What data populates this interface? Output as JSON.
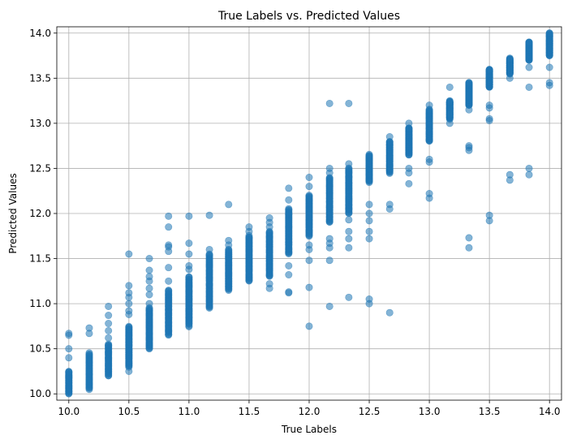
{
  "chart_data": {
    "type": "scatter",
    "title": "True Labels vs. Predicted Values",
    "xlabel": "True Labels",
    "ylabel": "Predicted Values",
    "xlim": [
      9.9,
      14.1
    ],
    "ylim": [
      9.93,
      14.07
    ],
    "xticks": [
      "10.0",
      "10.5",
      "11.0",
      "11.5",
      "12.0",
      "12.5",
      "13.0",
      "13.5",
      "14.0"
    ],
    "yticks": [
      "10.0",
      "10.5",
      "11.0",
      "11.5",
      "12.0",
      "12.5",
      "13.0",
      "13.5",
      "14.0"
    ],
    "grid": true,
    "marker_color": "#1f77b4",
    "marker_alpha": 0.55,
    "clusters": [
      {
        "x": 10.0,
        "y_range": [
          10.0,
          10.25
        ],
        "count": 40,
        "outliers": [
          10.4,
          10.5,
          10.65,
          10.67
        ]
      },
      {
        "x": 10.17,
        "y_range": [
          10.05,
          10.45
        ],
        "count": 45,
        "outliers": [
          10.67,
          10.73
        ]
      },
      {
        "x": 10.33,
        "y_range": [
          10.2,
          10.55
        ],
        "count": 50,
        "outliers": [
          10.62,
          10.7,
          10.78,
          10.87,
          10.97
        ]
      },
      {
        "x": 10.5,
        "y_range": [
          10.3,
          10.75
        ],
        "count": 60,
        "outliers": [
          10.25,
          10.88,
          10.92,
          11.0,
          11.07,
          11.12,
          11.2,
          11.55
        ]
      },
      {
        "x": 10.67,
        "y_range": [
          10.5,
          10.95
        ],
        "count": 60,
        "outliers": [
          11.0,
          11.1,
          11.17,
          11.25,
          11.3,
          11.37,
          11.5
        ]
      },
      {
        "x": 10.83,
        "y_range": [
          10.65,
          11.15
        ],
        "count": 60,
        "outliers": [
          11.25,
          11.4,
          11.58,
          11.63,
          11.65,
          11.85,
          11.97
        ]
      },
      {
        "x": 11.0,
        "y_range": [
          10.75,
          11.3
        ],
        "count": 60,
        "outliers": [
          11.38,
          11.42,
          11.55,
          11.67,
          11.97
        ]
      },
      {
        "x": 11.17,
        "y_range": [
          10.95,
          11.55
        ],
        "count": 60,
        "outliers": [
          11.6,
          11.98
        ]
      },
      {
        "x": 11.33,
        "y_range": [
          11.15,
          11.6
        ],
        "count": 60,
        "outliers": [
          11.65,
          11.7,
          12.1
        ]
      },
      {
        "x": 11.5,
        "y_range": [
          11.25,
          11.75
        ],
        "count": 60,
        "outliers": [
          11.8,
          11.85
        ]
      },
      {
        "x": 11.67,
        "y_range": [
          11.3,
          11.8
        ],
        "count": 60,
        "outliers": [
          11.17,
          11.22,
          11.85,
          11.9,
          11.95
        ]
      },
      {
        "x": 11.83,
        "y_range": [
          11.55,
          12.05
        ],
        "count": 60,
        "outliers": [
          11.12,
          11.13,
          11.32,
          11.42,
          12.15,
          12.28
        ]
      },
      {
        "x": 12.0,
        "y_range": [
          11.75,
          12.2
        ],
        "count": 60,
        "outliers": [
          10.75,
          11.18,
          11.48,
          11.6,
          11.65,
          12.3,
          12.4
        ]
      },
      {
        "x": 12.17,
        "y_range": [
          11.9,
          12.4
        ],
        "count": 60,
        "outliers": [
          10.97,
          11.48,
          11.62,
          11.67,
          11.72,
          12.45,
          12.5,
          13.22
        ]
      },
      {
        "x": 12.33,
        "y_range": [
          12.0,
          12.5
        ],
        "count": 60,
        "outliers": [
          11.07,
          11.62,
          11.72,
          11.8,
          11.93,
          12.55,
          13.22
        ]
      },
      {
        "x": 12.5,
        "y_range": [
          12.35,
          12.65
        ],
        "count": 60,
        "outliers": [
          11.0,
          11.05,
          11.72,
          11.8,
          11.92,
          12.0,
          12.1
        ]
      },
      {
        "x": 12.67,
        "y_range": [
          12.45,
          12.8
        ],
        "count": 60,
        "outliers": [
          10.9,
          12.05,
          12.1,
          12.85
        ]
      },
      {
        "x": 12.83,
        "y_range": [
          12.65,
          12.95
        ],
        "count": 60,
        "outliers": [
          12.33,
          12.45,
          12.5,
          13.0
        ]
      },
      {
        "x": 13.0,
        "y_range": [
          12.8,
          13.15
        ],
        "count": 60,
        "outliers": [
          12.17,
          12.22,
          12.57,
          12.6,
          13.2
        ]
      },
      {
        "x": 13.17,
        "y_range": [
          13.05,
          13.25
        ],
        "count": 60,
        "outliers": [
          13.0,
          13.1,
          13.4
        ]
      },
      {
        "x": 13.33,
        "y_range": [
          13.2,
          13.45
        ],
        "count": 60,
        "outliers": [
          11.62,
          11.73,
          12.7,
          12.73,
          12.75,
          13.15
        ]
      },
      {
        "x": 13.5,
        "y_range": [
          13.4,
          13.6
        ],
        "count": 60,
        "outliers": [
          11.92,
          11.98,
          13.03,
          13.05,
          13.17,
          13.2
        ]
      },
      {
        "x": 13.67,
        "y_range": [
          13.55,
          13.72
        ],
        "count": 55,
        "outliers": [
          12.37,
          12.43,
          13.5
        ]
      },
      {
        "x": 13.83,
        "y_range": [
          13.7,
          13.9
        ],
        "count": 55,
        "outliers": [
          12.43,
          12.5,
          13.4,
          13.62
        ]
      },
      {
        "x": 14.0,
        "y_range": [
          13.75,
          14.0
        ],
        "count": 60,
        "outliers": [
          13.42,
          13.45,
          13.62
        ]
      }
    ]
  }
}
